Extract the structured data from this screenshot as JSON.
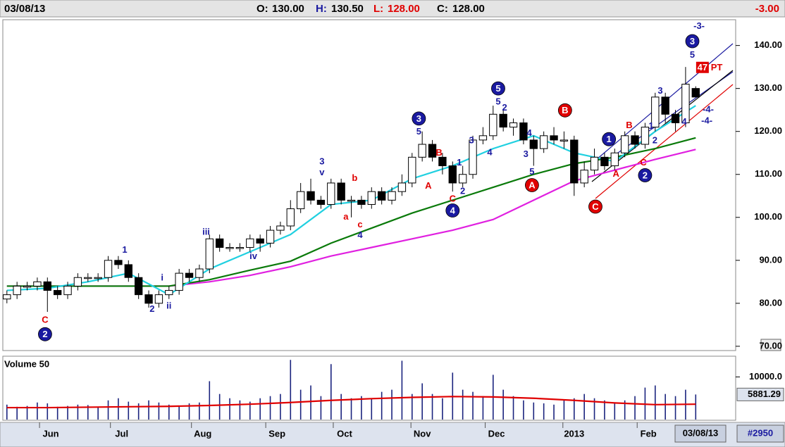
{
  "header": {
    "date": "03/08/13",
    "open_label": "O:",
    "open": "130.00",
    "high_label": "H:",
    "high": "130.50",
    "low_label": "L:",
    "low": "128.00",
    "close_label": "C:",
    "close": "128.00",
    "change": "-3.00"
  },
  "footer": {
    "date": "03/08/13",
    "id": "#2950"
  },
  "chart_data": [
    {
      "type": "candlestick",
      "x": [
        0,
        3,
        6,
        9,
        12,
        15,
        18,
        21,
        24,
        27,
        30,
        33,
        36,
        39,
        42,
        45,
        48,
        51,
        54,
        57,
        60,
        63,
        66,
        69,
        72,
        75,
        78,
        81,
        84,
        87,
        90,
        93,
        96,
        99,
        102,
        105,
        108,
        111,
        114,
        117,
        120,
        123,
        126,
        129,
        132,
        135,
        138,
        141,
        144,
        147,
        150,
        153,
        156,
        159,
        162,
        165,
        168,
        171,
        174,
        177,
        180,
        183,
        186,
        189,
        192,
        195,
        198,
        201,
        204
      ],
      "open": [
        81,
        82,
        84,
        84,
        85,
        83,
        82,
        84,
        86,
        86,
        86,
        90,
        89,
        86,
        82,
        80,
        82,
        83,
        87,
        86,
        88,
        95,
        93,
        93,
        93,
        95,
        94,
        97,
        98,
        102,
        106,
        104,
        103,
        108,
        104,
        104,
        103,
        106,
        104,
        106,
        108,
        114,
        117,
        114,
        112,
        108,
        110,
        118,
        119,
        124,
        121,
        122,
        118,
        116,
        119,
        118,
        118,
        108,
        111,
        114,
        112,
        115,
        119,
        117,
        121,
        128,
        124,
        122,
        130
      ],
      "high": [
        83,
        85,
        85,
        86,
        86,
        84,
        85,
        87,
        87,
        87,
        91,
        91,
        90,
        87,
        83,
        83,
        84,
        88,
        88,
        89,
        96,
        96,
        94,
        94,
        96,
        96,
        98,
        99,
        104,
        108,
        109,
        105,
        109,
        109,
        105,
        105,
        107,
        107,
        107,
        110,
        115,
        120,
        118,
        115,
        113,
        112,
        119,
        121,
        126,
        125,
        123,
        123,
        119,
        120,
        121,
        120,
        119,
        113,
        116,
        115,
        116,
        120,
        120,
        122,
        129,
        129,
        125,
        135,
        130.5
      ],
      "low": [
        80,
        81,
        83,
        83,
        78,
        81,
        81,
        83,
        85,
        85,
        85,
        88,
        85,
        81,
        79,
        79,
        81,
        82,
        85,
        85,
        87,
        92,
        92,
        92,
        92,
        92,
        93,
        96,
        97,
        101,
        103,
        102,
        102,
        103,
        100,
        102,
        102,
        103,
        103,
        105,
        107,
        113,
        113,
        110,
        106,
        107,
        109,
        117,
        118,
        120,
        119,
        117,
        112,
        115,
        117,
        116,
        105,
        107,
        110,
        111,
        111,
        114,
        116,
        116,
        120,
        122,
        120,
        121,
        128
      ],
      "close": [
        82,
        84,
        84,
        85,
        83,
        82,
        84,
        86,
        86,
        86,
        90,
        89,
        86,
        82,
        80,
        82,
        83,
        87,
        86,
        88,
        95,
        93,
        93,
        93,
        95,
        94,
        97,
        98,
        102,
        106,
        104,
        103,
        108,
        104,
        104,
        103,
        106,
        104,
        106,
        108,
        114,
        117,
        114,
        112,
        108,
        110,
        118,
        119,
        124,
        121,
        122,
        118,
        116,
        119,
        118,
        118,
        108,
        111,
        114,
        112,
        115,
        119,
        117,
        121,
        128,
        124,
        122,
        131,
        128
      ],
      "up_color": "#ffffff",
      "down_color": "#000000",
      "wick_color": "#000000",
      "xlim": [
        -1,
        215
      ],
      "ylim": [
        69,
        146
      ],
      "xticks": [
        {
          "value": 13,
          "label": "Jun"
        },
        {
          "value": 34,
          "label": "Jul"
        },
        {
          "value": 58,
          "label": "Aug"
        },
        {
          "value": 80,
          "label": "Sep"
        },
        {
          "value": 100,
          "label": "Oct"
        },
        {
          "value": 123,
          "label": "Nov"
        },
        {
          "value": 145,
          "label": "Dec"
        },
        {
          "value": 168,
          "label": "2013"
        },
        {
          "value": 190,
          "label": "Feb"
        }
      ],
      "yticks": [
        {
          "value": 140,
          "label": "140.00"
        },
        {
          "value": 130,
          "label": "130.00"
        },
        {
          "value": 120,
          "label": "120.00"
        },
        {
          "value": 110,
          "label": "110.00"
        },
        {
          "value": 100,
          "label": "100.00"
        },
        {
          "value": 90,
          "label": "90.00"
        },
        {
          "value": 80,
          "label": "80.00"
        },
        {
          "value": 70,
          "label": "70.00"
        }
      ],
      "overlays": [
        {
          "color": "#e020e0",
          "x": [
            0,
            12,
            24,
            36,
            48,
            60,
            72,
            84,
            96,
            108,
            120,
            132,
            144,
            156,
            168,
            180,
            192,
            204
          ],
          "values": [
            84,
            84,
            84,
            84,
            84,
            85,
            86.5,
            88.5,
            91,
            93,
            95,
            97,
            99.5,
            104,
            108.5,
            111,
            113.5,
            115.8
          ]
        },
        {
          "color": "#0a7a0a",
          "x": [
            0,
            12,
            24,
            36,
            48,
            60,
            72,
            84,
            96,
            108,
            120,
            132,
            144,
            156,
            168,
            180,
            192,
            204
          ],
          "values": [
            84,
            84,
            84,
            84,
            84,
            85.5,
            87.7,
            89.8,
            94,
            97.5,
            101,
            104,
            107,
            110,
            112.5,
            114,
            116,
            118.5
          ]
        },
        {
          "color": "#20d0e0",
          "x": [
            0,
            12,
            24,
            36,
            48,
            60,
            72,
            84,
            96,
            108,
            120,
            132,
            144,
            156,
            168,
            180,
            192,
            204
          ],
          "values": [
            83,
            83.5,
            85,
            87,
            82,
            88,
            92,
            96,
            103,
            104,
            109,
            112,
            116,
            119,
            115,
            113,
            120,
            126
          ]
        }
      ],
      "annotations": [
        {
          "text": "C",
          "color": "#e00000",
          "style": "plain",
          "x": 11.3,
          "y": 76.2
        },
        {
          "text": "2",
          "color": "#1a1aa0",
          "style": "circle",
          "x": 11.3,
          "y": 72.8
        },
        {
          "text": "1",
          "color": "#1a1aa0",
          "style": "plain",
          "x": 34.9,
          "y": 92.5
        },
        {
          "text": "2",
          "color": "#1a1aa0",
          "style": "plain",
          "x": 43,
          "y": 78.7
        },
        {
          "text": "i",
          "color": "#1a1aa0",
          "style": "plain",
          "x": 46,
          "y": 86
        },
        {
          "text": "ii",
          "color": "#1a1aa0",
          "style": "plain",
          "x": 48,
          "y": 79.5
        },
        {
          "text": "iii",
          "color": "#1a1aa0",
          "style": "plain",
          "x": 59,
          "y": 96.7
        },
        {
          "text": "iv",
          "color": "#1a1aa0",
          "style": "plain",
          "x": 73,
          "y": 91
        },
        {
          "text": "3",
          "color": "#1a1aa0",
          "style": "plain",
          "x": 93.3,
          "y": 113.1
        },
        {
          "text": "v",
          "color": "#1a1aa0",
          "style": "plain",
          "x": 93.3,
          "y": 110.5
        },
        {
          "text": "b",
          "color": "#e00000",
          "style": "plain",
          "x": 103,
          "y": 109.2
        },
        {
          "text": "a",
          "color": "#e00000",
          "style": "plain",
          "x": 100.4,
          "y": 100.2
        },
        {
          "text": "c",
          "color": "#e00000",
          "style": "plain",
          "x": 104.6,
          "y": 98.4
        },
        {
          "text": "4",
          "color": "#1a1aa0",
          "style": "plain",
          "x": 104.6,
          "y": 95.9
        },
        {
          "text": "3",
          "color": "#1a1aa0",
          "style": "circle",
          "x": 122,
          "y": 123
        },
        {
          "text": "5",
          "color": "#1a1aa0",
          "style": "plain",
          "x": 122,
          "y": 120
        },
        {
          "text": "B",
          "color": "#e00000",
          "style": "plain",
          "x": 128,
          "y": 115.1
        },
        {
          "text": "A",
          "color": "#e00000",
          "style": "plain",
          "x": 124.8,
          "y": 107.4
        },
        {
          "text": "C",
          "color": "#e00000",
          "style": "plain",
          "x": 132,
          "y": 104.4
        },
        {
          "text": "4",
          "color": "#1a1aa0",
          "style": "circle",
          "x": 132,
          "y": 101.6
        },
        {
          "text": "1",
          "color": "#1a1aa0",
          "style": "plain",
          "x": 134,
          "y": 112.8
        },
        {
          "text": "2",
          "color": "#1a1aa0",
          "style": "plain",
          "x": 135,
          "y": 106.2
        },
        {
          "text": "3",
          "color": "#1a1aa0",
          "style": "plain",
          "x": 137.6,
          "y": 118
        },
        {
          "text": "4",
          "color": "#1a1aa0",
          "style": "plain",
          "x": 143,
          "y": 115.2
        },
        {
          "text": "5",
          "color": "#1a1aa0",
          "style": "circle",
          "x": 145.5,
          "y": 130
        },
        {
          "text": "5",
          "color": "#1a1aa0",
          "style": "plain",
          "x": 145.5,
          "y": 127
        },
        {
          "text": "2",
          "color": "#1a1aa0",
          "style": "plain",
          "x": 147.4,
          "y": 125.6
        },
        {
          "text": "3",
          "color": "#1a1aa0",
          "style": "plain",
          "x": 153.7,
          "y": 114.8
        },
        {
          "text": "4",
          "color": "#1a1aa0",
          "style": "plain",
          "x": 154.7,
          "y": 119.7
        },
        {
          "text": "5",
          "color": "#1a1aa0",
          "style": "plain",
          "x": 155.5,
          "y": 110.7
        },
        {
          "text": "A",
          "color": "#e00000",
          "style": "circle",
          "x": 155.5,
          "y": 107.5
        },
        {
          "text": "B",
          "color": "#e00000",
          "style": "circle",
          "x": 165.3,
          "y": 124.9
        },
        {
          "text": "C",
          "color": "#e00000",
          "style": "circle",
          "x": 174.3,
          "y": 102.5
        },
        {
          "text": "1",
          "color": "#1a1aa0",
          "style": "circle",
          "x": 178.3,
          "y": 118.2
        },
        {
          "text": "A",
          "color": "#e00000",
          "style": "plain",
          "x": 180.4,
          "y": 110.2
        },
        {
          "text": "B",
          "color": "#e00000",
          "style": "plain",
          "x": 184.3,
          "y": 121.5
        },
        {
          "text": "C",
          "color": "#e00000",
          "style": "plain",
          "x": 188.5,
          "y": 112.8
        },
        {
          "text": "2",
          "color": "#1a1aa0",
          "style": "circle",
          "x": 189,
          "y": 109.8
        },
        {
          "text": "1",
          "color": "#1a1aa0",
          "style": "plain",
          "x": 190.8,
          "y": 121.3
        },
        {
          "text": "2",
          "color": "#1a1aa0",
          "style": "plain",
          "x": 191.9,
          "y": 118
        },
        {
          "text": "3",
          "color": "#1a1aa0",
          "style": "plain",
          "x": 193.5,
          "y": 129.5
        },
        {
          "text": "4",
          "color": "#1a1aa0",
          "style": "plain",
          "x": 200.6,
          "y": 122.3
        },
        {
          "text": "3",
          "color": "#1a1aa0",
          "style": "circle",
          "x": 203,
          "y": 141
        },
        {
          "text": "5",
          "color": "#1a1aa0",
          "style": "plain",
          "x": 203,
          "y": 137.9
        },
        {
          "text": "-3-",
          "color": "#1a1aa0",
          "style": "plain",
          "x": 205,
          "y": 144.6
        },
        {
          "text": "-4-",
          "color": "#1a1aa0",
          "style": "plain",
          "x": 207.7,
          "y": 125.2
        },
        {
          "text": "-4-",
          "color": "#1a1aa0",
          "style": "plain",
          "x": 207.3,
          "y": 122.6
        },
        {
          "text": "47",
          "color": "#e00000",
          "style": "box",
          "x": 206,
          "y": 134.9
        },
        {
          "text": "PT",
          "color": "#e00000",
          "style": "plain",
          "x": 210.2,
          "y": 134.9
        }
      ]
    },
    {
      "type": "bar",
      "title": "Volume 50",
      "color": "#1a237e",
      "x": [
        0,
        3,
        6,
        9,
        12,
        15,
        18,
        21,
        24,
        27,
        30,
        33,
        36,
        39,
        42,
        45,
        48,
        51,
        54,
        57,
        60,
        63,
        66,
        69,
        72,
        75,
        78,
        81,
        84,
        87,
        90,
        93,
        96,
        99,
        102,
        105,
        108,
        111,
        114,
        117,
        120,
        123,
        126,
        129,
        132,
        135,
        138,
        141,
        144,
        147,
        150,
        153,
        156,
        159,
        162,
        165,
        168,
        171,
        174,
        177,
        180,
        183,
        186,
        189,
        192,
        195,
        198,
        201,
        204
      ],
      "values": [
        3500,
        3000,
        3200,
        4000,
        3800,
        3000,
        3200,
        3500,
        3400,
        3000,
        4500,
        5000,
        4200,
        3800,
        4500,
        4000,
        3500,
        3200,
        3800,
        4000,
        9000,
        6000,
        5000,
        4500,
        4200,
        5000,
        5500,
        6000,
        14000,
        7000,
        8000,
        5500,
        13000,
        6000,
        5000,
        5500,
        4800,
        6500,
        7000,
        13800,
        6000,
        8500,
        6000,
        5000,
        11000,
        7000,
        6500,
        5500,
        10500,
        7000,
        5500,
        4500,
        4000,
        3800,
        3500,
        4500,
        5000,
        6000,
        5000,
        4500,
        4000,
        4500,
        5500,
        7500,
        8000,
        6000,
        5500,
        7000,
        5881.29
      ],
      "ylim": [
        0,
        14700
      ],
      "yticks": [
        {
          "value": 10000,
          "label": "10000.0"
        }
      ],
      "overlays": [
        {
          "color": "#e00000",
          "x": [
            0,
            12,
            24,
            36,
            48,
            60,
            72,
            84,
            96,
            108,
            120,
            132,
            144,
            156,
            168,
            180,
            192,
            204
          ],
          "values": [
            2800,
            2800,
            2900,
            3000,
            3100,
            3300,
            3600,
            4000,
            4500,
            4900,
            5200,
            5400,
            5300,
            5000,
            4500,
            3900,
            3500,
            3600
          ]
        }
      ]
    }
  ]
}
